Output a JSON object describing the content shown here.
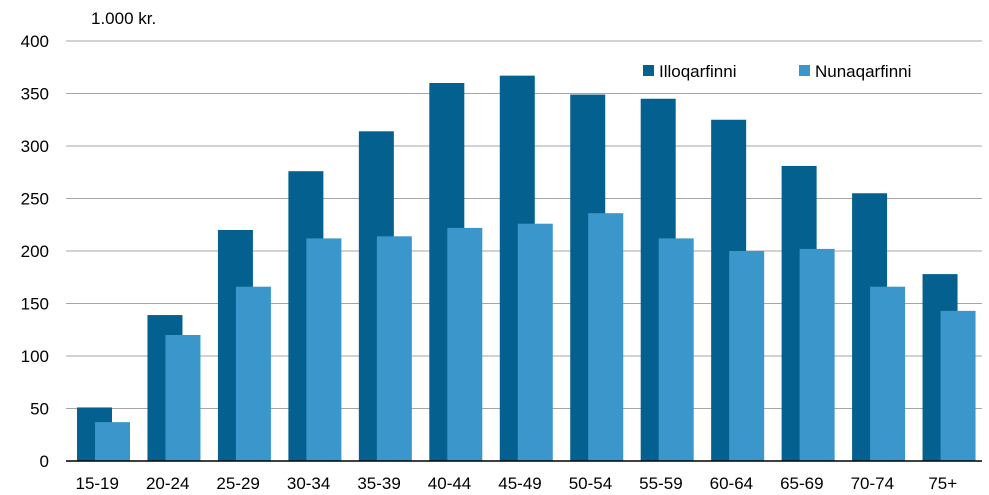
{
  "chart_data": {
    "type": "bar",
    "y_unit_label": "1.000 kr.",
    "categories": [
      "15-19",
      "20-24",
      "25-29",
      "30-34",
      "35-39",
      "40-44",
      "45-49",
      "50-54",
      "55-59",
      "60-64",
      "65-69",
      "70-74",
      "75+"
    ],
    "series": [
      {
        "name": "Illoqarfinni",
        "color": "#03608f",
        "values": [
          51,
          139,
          220,
          276,
          314,
          360,
          367,
          349,
          345,
          325,
          281,
          255,
          178
        ]
      },
      {
        "name": "Nunaqarfinni",
        "color": "#3a96cb",
        "values": [
          37,
          120,
          166,
          212,
          214,
          222,
          226,
          236,
          212,
          200,
          202,
          166,
          143
        ]
      }
    ],
    "ylim": [
      0,
      400
    ],
    "yticks": [
      0,
      50,
      100,
      150,
      200,
      250,
      300,
      350,
      400
    ],
    "grid": true,
    "legend_position": "top-right"
  }
}
